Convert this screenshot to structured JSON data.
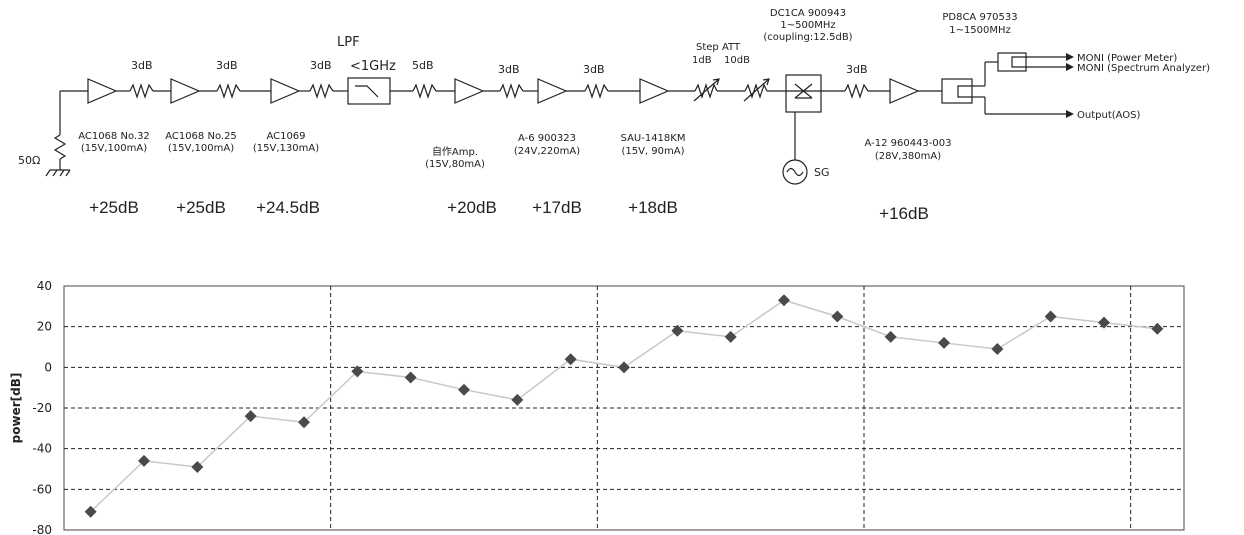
{
  "circuit": {
    "termination": "50Ω",
    "pad_labels": [
      "3dB",
      "3dB",
      "3dB",
      "5dB",
      "3dB",
      "3dB",
      "3dB"
    ],
    "lpf": {
      "title": "LPF",
      "spec": "<1GHz"
    },
    "step_att": {
      "title": "Step ATT",
      "coarse": "1dB",
      "fine": "10dB"
    },
    "coupler": {
      "model": "DC1CA 900943",
      "range": "1~500MHz",
      "coupling": "(coupling:12.5dB)"
    },
    "splitter": {
      "model": "PD8CA 970533",
      "range": "1~1500MHz"
    },
    "signal_generator": "SG",
    "outputs": [
      "MONI (Power Meter)",
      "MONI (Spectrum  Analyzer)",
      "Output(AOS)"
    ],
    "amplifiers": [
      {
        "model": "AC1068 No.32",
        "spec": "(15V,100mA)",
        "gain": "+25dB"
      },
      {
        "model": "AC1068 No.25",
        "spec": "(15V,100mA)",
        "gain": "+25dB"
      },
      {
        "model": "AC1069",
        "spec": "(15V,130mA)",
        "gain": "+24.5dB"
      },
      {
        "model": "自作Amp.",
        "spec": "(15V,80mA)",
        "gain": "+20dB"
      },
      {
        "model": "A-6 900323",
        "spec": "(24V,220mA)",
        "gain": "+17dB"
      },
      {
        "model": "SAU-1418KM",
        "spec": "(15V, 90mA)",
        "gain": "+18dB"
      },
      {
        "model": "A-12 960443-003",
        "spec": "(28V,380mA)",
        "gain": "+16dB"
      }
    ]
  },
  "chart_data": {
    "type": "line",
    "ylabel": "power[dB]",
    "ylim": [
      -80,
      40
    ],
    "yticks": [
      40,
      20,
      0,
      -20,
      -40,
      -60,
      -80
    ],
    "grid": true,
    "values": [
      -71,
      -46,
      -49,
      -24,
      -27,
      -2,
      -5,
      -11,
      -16,
      4,
      0,
      18,
      15,
      33,
      25,
      15,
      12,
      9,
      25,
      22,
      19
    ],
    "line_color": "#c8c8c8",
    "marker_color": "#4a4a4a"
  }
}
